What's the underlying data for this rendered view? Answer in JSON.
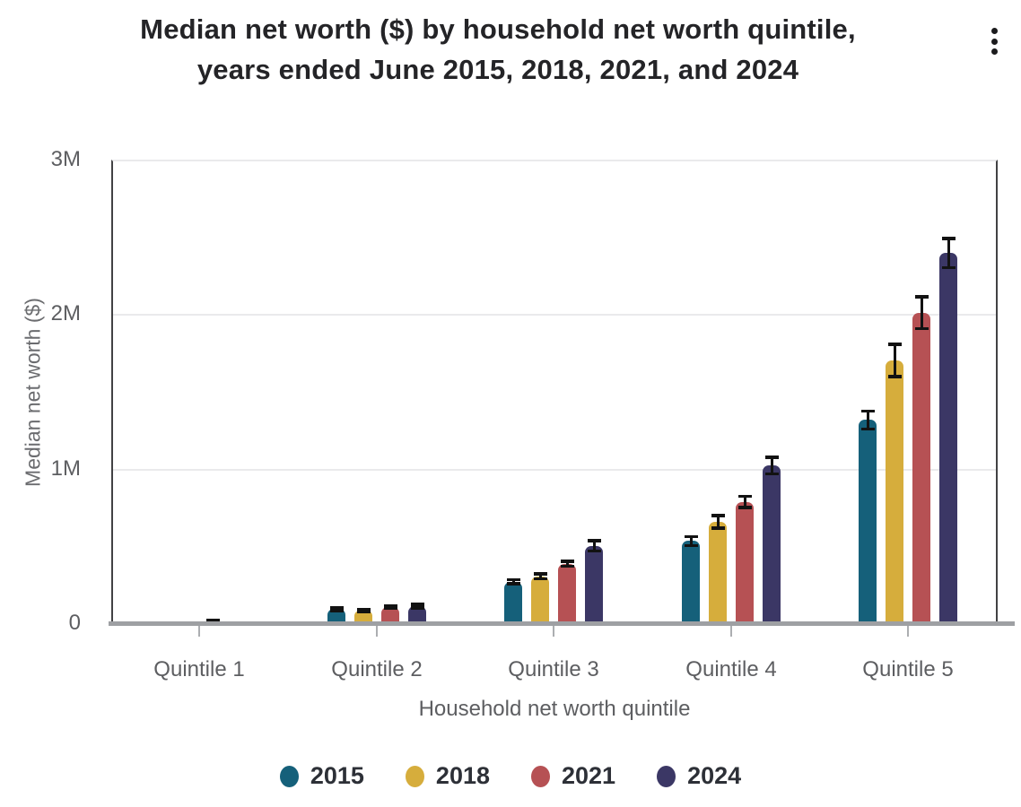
{
  "header": {
    "title_line1": "Median net worth ($) by household net worth quintile,",
    "title_line2": "years ended June 2015, 2018, 2021, and 2024",
    "menu_icon": "kebab-menu"
  },
  "chart_data": {
    "type": "bar",
    "title": "Median net worth ($) by household net worth quintile, years ended June 2015, 2018, 2021, and 2024",
    "xlabel": "Household net worth quintile",
    "ylabel": "Median net worth ($)",
    "categories": [
      "Quintile 1",
      "Quintile 2",
      "Quintile 3",
      "Quintile 4",
      "Quintile 5"
    ],
    "y_ticks": [
      {
        "label": "0",
        "value": 0
      },
      {
        "label": "1M",
        "value": 1000000
      },
      {
        "label": "2M",
        "value": 2000000
      },
      {
        "label": "3M",
        "value": 3000000
      }
    ],
    "ylim": [
      0,
      3000000
    ],
    "grid": true,
    "error_bars": true,
    "legend_position": "bottom",
    "series": [
      {
        "name": "2015",
        "color": "#15607a",
        "values": [
          3000,
          91000,
          268000,
          532000,
          1315000
        ],
        "errors": [
          2000,
          10000,
          15000,
          30000,
          60000
        ]
      },
      {
        "name": "2018",
        "color": "#d6ad3c",
        "values": [
          4000,
          80000,
          303000,
          655000,
          1700000
        ],
        "errors": [
          2000,
          9000,
          18000,
          42000,
          105000
        ]
      },
      {
        "name": "2021",
        "color": "#b65154",
        "values": [
          11000,
          103000,
          385000,
          785000,
          2010000
        ],
        "errors": [
          8000,
          10000,
          18000,
          37000,
          105000
        ]
      },
      {
        "name": "2024",
        "color": "#3b3765",
        "values": [
          7000,
          110000,
          500000,
          1020000,
          2395000
        ],
        "errors": [
          3000,
          12000,
          35000,
          55000,
          95000
        ]
      }
    ]
  }
}
